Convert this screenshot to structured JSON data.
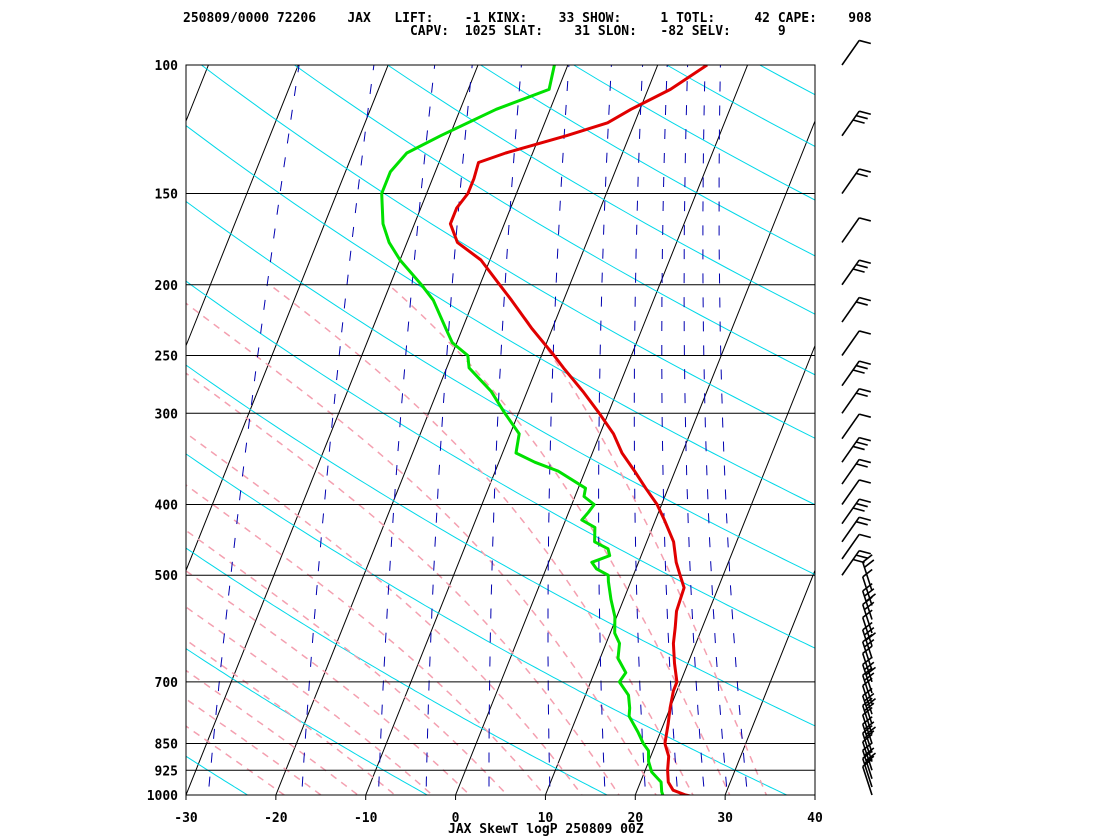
{
  "header": {
    "line1": "250809/0000 72206    JAX   LIFT:    -1 KINX:    33 SHOW:     1 TOTL:     42 CAPE:    908",
    "line2": "                             CAPV:  1025 SLAT:    31 SLON:   -82 SELV:      9"
  },
  "footer": {
    "caption": "JAX SkewT logP 250809 00Z"
  },
  "colors": {
    "temperature": "#e00000",
    "dewpoint": "#00e000",
    "isotherm": "#000000",
    "dry_adiabat": "#00d8e8",
    "moist_adiabat": "#f4a0b0",
    "mixing_ratio": "#0000b0",
    "wind_barb": "#000000"
  },
  "chart_data": {
    "type": "line",
    "title": "",
    "x_axis": {
      "label": "",
      "ticks": [
        -30,
        -20,
        -10,
        0,
        10,
        20,
        30,
        40
      ],
      "range": [
        -30,
        40
      ]
    },
    "y_axis": {
      "label": "",
      "scale": "log",
      "ticks": [
        100,
        150,
        200,
        250,
        300,
        400,
        500,
        700,
        850,
        925,
        1000
      ],
      "range": [
        1000,
        100
      ]
    },
    "grid": true,
    "series": [
      {
        "key": "temperature",
        "points": [
          [
            1005,
            26.5
          ],
          [
            1000,
            25.6
          ],
          [
            985,
            24.0
          ],
          [
            960,
            23.1
          ],
          [
            925,
            22.5
          ],
          [
            885,
            22.0
          ],
          [
            850,
            21.0
          ],
          [
            800,
            20.5
          ],
          [
            760,
            20.0
          ],
          [
            720,
            19.6
          ],
          [
            700,
            19.6
          ],
          [
            660,
            18.5
          ],
          [
            620,
            17.5
          ],
          [
            590,
            17.0
          ],
          [
            560,
            16.4
          ],
          [
            520,
            16.2
          ],
          [
            500,
            15.2
          ],
          [
            480,
            14.2
          ],
          [
            450,
            13.0
          ],
          [
            420,
            11.0
          ],
          [
            400,
            9.5
          ],
          [
            380,
            7.5
          ],
          [
            360,
            5.5
          ],
          [
            340,
            3.3
          ],
          [
            320,
            1.5
          ],
          [
            300,
            -1.0
          ],
          [
            280,
            -3.8
          ],
          [
            260,
            -7.0
          ],
          [
            250,
            -8.6
          ],
          [
            230,
            -12.2
          ],
          [
            210,
            -15.8
          ],
          [
            200,
            -17.8
          ],
          [
            185,
            -21.0
          ],
          [
            175,
            -24.4
          ],
          [
            165,
            -26.0
          ],
          [
            157,
            -26.0
          ],
          [
            150,
            -25.4
          ],
          [
            143,
            -25.4
          ],
          [
            136,
            -25.6
          ],
          [
            132,
            -23.0
          ],
          [
            125,
            -17.0
          ],
          [
            120,
            -13.0
          ],
          [
            115,
            -11.0
          ],
          [
            108,
            -7.5
          ],
          [
            100,
            -4.5
          ]
        ]
      },
      {
        "key": "dewpoint",
        "points": [
          [
            1005,
            23.2
          ],
          [
            990,
            22.8
          ],
          [
            960,
            22.3
          ],
          [
            930,
            20.8
          ],
          [
            900,
            20.0
          ],
          [
            870,
            19.5
          ],
          [
            850,
            18.6
          ],
          [
            820,
            17.5
          ],
          [
            780,
            15.8
          ],
          [
            760,
            15.5
          ],
          [
            730,
            14.8
          ],
          [
            700,
            13.2
          ],
          [
            680,
            13.5
          ],
          [
            650,
            12.0
          ],
          [
            620,
            11.5
          ],
          [
            600,
            10.5
          ],
          [
            570,
            9.8
          ],
          [
            540,
            8.6
          ],
          [
            510,
            7.5
          ],
          [
            500,
            7.2
          ],
          [
            490,
            5.6
          ],
          [
            480,
            4.8
          ],
          [
            470,
            6.5
          ],
          [
            460,
            6.0
          ],
          [
            450,
            4.2
          ],
          [
            430,
            3.6
          ],
          [
            420,
            1.8
          ],
          [
            410,
            2.2
          ],
          [
            400,
            2.5
          ],
          [
            390,
            1.0
          ],
          [
            380,
            0.8
          ],
          [
            360,
            -3.0
          ],
          [
            350,
            -6.0
          ],
          [
            340,
            -8.5
          ],
          [
            320,
            -9.0
          ],
          [
            300,
            -11.5
          ],
          [
            280,
            -14.0
          ],
          [
            260,
            -17.5
          ],
          [
            250,
            -18.2
          ],
          [
            240,
            -20.5
          ],
          [
            230,
            -21.8
          ],
          [
            210,
            -24.5
          ],
          [
            200,
            -26.5
          ],
          [
            185,
            -30.0
          ],
          [
            175,
            -32.0
          ],
          [
            165,
            -33.5
          ],
          [
            150,
            -35.0
          ],
          [
            140,
            -35.0
          ],
          [
            132,
            -34.0
          ],
          [
            125,
            -31.0
          ],
          [
            115,
            -26.0
          ],
          [
            108,
            -21.0
          ],
          [
            100,
            -21.5
          ]
        ]
      }
    ]
  }
}
